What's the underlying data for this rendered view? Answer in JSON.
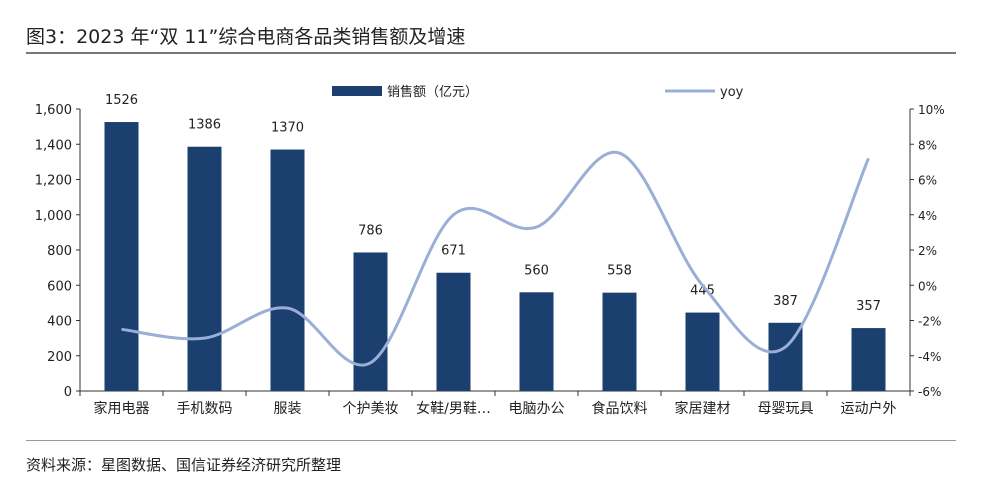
{
  "title": "图3：2023 年“双 11”综合电商各品类销售额及增速",
  "source": "资料来源：星图数据、国信证券经济研究所整理",
  "chart_data": {
    "type": "bar+line",
    "categories": [
      "家用电器",
      "手机数码",
      "服装",
      "个护美妆",
      "女鞋/男鞋…",
      "电脑办公",
      "食品饮料",
      "家居建材",
      "母婴玩具",
      "运动户外"
    ],
    "series": [
      {
        "name": "销售额（亿元）",
        "type": "bar",
        "axis": "left",
        "color": "#1b3f6e",
        "values": [
          1526,
          1386,
          1370,
          786,
          671,
          560,
          558,
          445,
          387,
          357
        ]
      },
      {
        "name": "yoy",
        "type": "line",
        "axis": "right",
        "color": "#9aaed6",
        "values": [
          -2.5,
          -3.0,
          -1.3,
          -4.4,
          4.0,
          3.3,
          7.5,
          0.0,
          -3.5,
          7.2
        ]
      }
    ],
    "left_axis": {
      "ylim": [
        0,
        1600
      ],
      "ticks": [
        0,
        200,
        400,
        600,
        800,
        1000,
        1200,
        1400,
        1600
      ],
      "tick_labels": [
        "0",
        "200",
        "400",
        "600",
        "800",
        "1,000",
        "1,200",
        "1,400",
        "1,600"
      ]
    },
    "right_axis": {
      "ylim": [
        -6,
        10
      ],
      "ticks": [
        -6,
        -4,
        -2,
        0,
        2,
        4,
        6,
        8,
        10
      ],
      "tick_labels": [
        "-6%",
        "-4%",
        "-2%",
        "0%",
        "2%",
        "4%",
        "6%",
        "8%",
        "10%"
      ]
    },
    "data_labels": true,
    "grid": false,
    "legend": "top-center"
  }
}
